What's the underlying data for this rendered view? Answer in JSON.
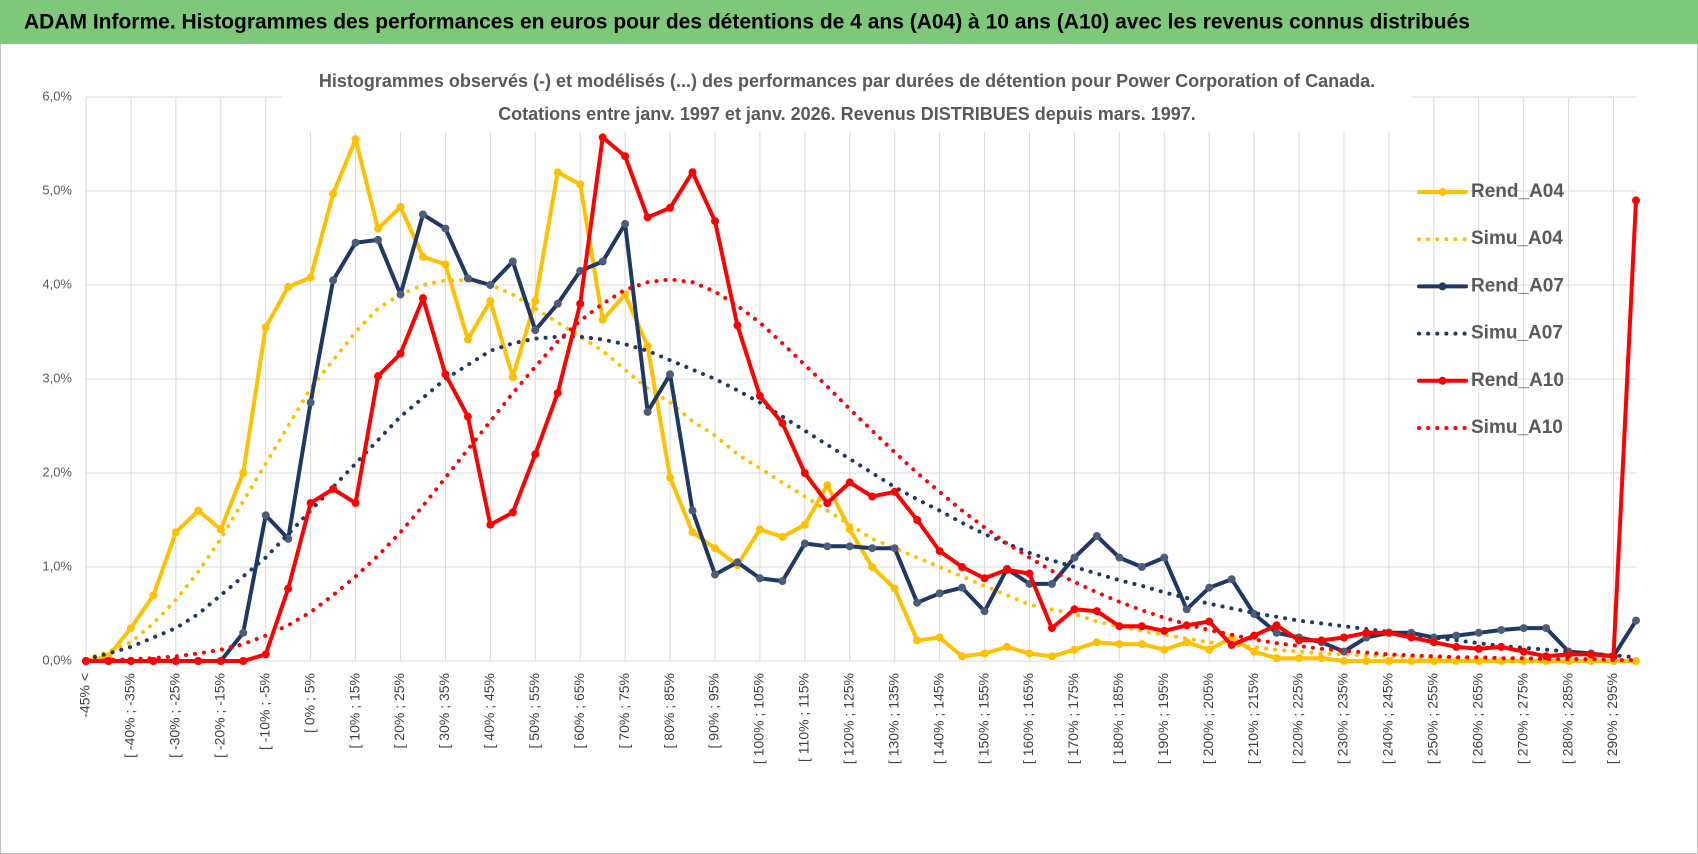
{
  "chart_data": {
    "type": "line",
    "title": "ADAM Informe. Histogrammes des performances en euros pour des détentions de 4 ans (A04) à 10 ans (A10) avec les revenus connus distribués",
    "subtitle": [
      "Histogrammes observés (-) et modélisés (...)  des performances par durées de détention pour Power Corporation of Canada.",
      "Cotations entre janv. 1997 et janv. 2026. Revenus DISTRIBUES depuis mars. 1997."
    ],
    "categories": [
      "-45% <",
      null,
      "[ -40% ; -35%",
      null,
      "[ -30% ; -25%",
      null,
      "[ -20% ; -15%",
      null,
      "[ -10% ; -5%",
      null,
      "[ 0% ; 5%",
      null,
      "[ 10% ; 15%",
      null,
      "[ 20% ; 25%",
      null,
      "[ 30% ; 35%",
      null,
      "[ 40% ; 45%",
      null,
      "[ 50% ; 55%",
      null,
      "[ 60% ; 65%",
      null,
      "[ 70% ; 75%",
      null,
      "[ 80% ; 85%",
      null,
      "[ 90% ; 95%",
      null,
      "[ 100% ; 105%",
      null,
      "[ 110% ; 115%",
      null,
      "[ 120% ; 125%",
      null,
      "[ 130% ; 135%",
      null,
      "[ 140% ; 145%",
      null,
      "[ 150% ; 155%",
      null,
      "[ 160% ; 165%",
      null,
      "[ 170% ; 175%",
      null,
      "[ 180% ; 185%",
      null,
      "[ 190% ; 195%",
      null,
      "[ 200% ; 205%",
      null,
      "[ 210% ; 215%",
      null,
      "[ 220% ; 225%",
      null,
      "[ 230% ; 235%",
      null,
      "[ 240% ; 245%",
      null,
      "[ 250% ; 255%",
      null,
      "[ 260% ; 265%",
      null,
      "[ 270% ; 275%",
      null,
      "[ 280% ; 285%",
      null,
      "[ 290% ; 295%",
      null
    ],
    "ylim": [
      0,
      6
    ],
    "yticks": [
      {
        "value": 0,
        "label": "0,0%"
      },
      {
        "value": 1,
        "label": "1,0%"
      },
      {
        "value": 2,
        "label": "2,0%"
      },
      {
        "value": 3,
        "label": "3,0%"
      },
      {
        "value": 4,
        "label": "4,0%"
      },
      {
        "value": 5,
        "label": "5,0%"
      },
      {
        "value": 6,
        "label": "6,0%"
      }
    ],
    "grid": true,
    "legend": "right",
    "series": [
      {
        "name": "Rend_A04",
        "color": "#ffc000",
        "style": "solid",
        "markers": true,
        "values": [
          0,
          0.05,
          0.35,
          0.7,
          1.37,
          1.6,
          1.4,
          2.0,
          3.55,
          3.98,
          4.08,
          4.97,
          5.55,
          4.6,
          4.83,
          4.3,
          4.22,
          3.42,
          3.83,
          3.02,
          3.83,
          5.2,
          5.07,
          3.63,
          3.9,
          3.35,
          1.95,
          1.37,
          1.2,
          1.02,
          1.4,
          1.32,
          1.45,
          1.87,
          1.4,
          1.0,
          0.77,
          0.22,
          0.25,
          0.05,
          0.08,
          0.15,
          0.08,
          0.05,
          0.12,
          0.2,
          0.18,
          0.18,
          0.12,
          0.2,
          0.12,
          0.25,
          0.1,
          0.03,
          0.03,
          0.03,
          0,
          0,
          0,
          0,
          0,
          0,
          0,
          0,
          0,
          0,
          0,
          0,
          0,
          0
        ]
      },
      {
        "name": "Simu_A04",
        "color": "#ffc000",
        "style": "dotted",
        "markers": false,
        "values": [
          0.02,
          0.1,
          0.2,
          0.4,
          0.65,
          0.95,
          1.3,
          1.7,
          2.1,
          2.5,
          2.9,
          3.2,
          3.5,
          3.75,
          3.9,
          4.0,
          4.05,
          4.05,
          4.0,
          3.9,
          3.75,
          3.6,
          3.45,
          3.3,
          3.1,
          2.9,
          2.75,
          2.55,
          2.4,
          2.2,
          2.05,
          1.9,
          1.75,
          1.6,
          1.45,
          1.3,
          1.2,
          1.1,
          1.0,
          0.9,
          0.8,
          0.7,
          0.6,
          0.55,
          0.5,
          0.42,
          0.37,
          0.32,
          0.28,
          0.24,
          0.2,
          0.17,
          0.15,
          0.12,
          0.1,
          0.08,
          0.07,
          0.06,
          0.05,
          0.04,
          0.03,
          0.03,
          0.02,
          0.02,
          0.01,
          0.01,
          0.01,
          0.01,
          0.01,
          0
        ]
      },
      {
        "name": "Rend_A07",
        "color": "#1f3864",
        "style": "solid",
        "markers": true,
        "values": [
          0,
          0,
          0,
          0,
          0,
          0,
          0,
          0.3,
          1.55,
          1.3,
          2.75,
          4.05,
          4.45,
          4.48,
          3.9,
          4.75,
          4.6,
          4.07,
          4.0,
          4.25,
          3.52,
          3.8,
          4.15,
          4.25,
          4.65,
          2.65,
          3.05,
          1.6,
          0.92,
          1.05,
          0.88,
          0.85,
          1.25,
          1.22,
          1.22,
          1.2,
          1.2,
          0.62,
          0.72,
          0.78,
          0.53,
          0.98,
          0.82,
          0.82,
          1.1,
          1.33,
          1.1,
          1.0,
          1.1,
          0.55,
          0.78,
          0.87,
          0.5,
          0.3,
          0.25,
          0.2,
          0.1,
          0.25,
          0.3,
          0.3,
          0.25,
          0.27,
          0.3,
          0.33,
          0.35,
          0.35,
          0.1,
          0.08,
          0.05,
          0.43
        ]
      },
      {
        "name": "Simu_A07",
        "color": "#1f3864",
        "style": "dotted",
        "markers": false,
        "values": [
          0.02,
          0.08,
          0.15,
          0.25,
          0.35,
          0.5,
          0.7,
          0.9,
          1.1,
          1.35,
          1.6,
          1.85,
          2.1,
          2.35,
          2.6,
          2.8,
          3.0,
          3.15,
          3.3,
          3.38,
          3.43,
          3.45,
          3.45,
          3.42,
          3.37,
          3.3,
          3.2,
          3.1,
          3.0,
          2.88,
          2.75,
          2.6,
          2.45,
          2.3,
          2.15,
          2.0,
          1.85,
          1.72,
          1.6,
          1.47,
          1.35,
          1.25,
          1.15,
          1.07,
          1.0,
          0.93,
          0.86,
          0.8,
          0.73,
          0.67,
          0.61,
          0.56,
          0.51,
          0.47,
          0.43,
          0.4,
          0.37,
          0.34,
          0.31,
          0.28,
          0.25,
          0.22,
          0.19,
          0.16,
          0.14,
          0.12,
          0.1,
          0.08,
          0.06,
          0.04
        ]
      },
      {
        "name": "Rend_A10",
        "color": "#ff0000",
        "style": "solid",
        "markers": true,
        "values": [
          0,
          0,
          0,
          0,
          0,
          0,
          0,
          0,
          0.07,
          0.77,
          1.68,
          1.83,
          1.68,
          3.03,
          3.27,
          3.86,
          3.05,
          2.6,
          1.45,
          1.58,
          2.2,
          2.85,
          3.8,
          5.57,
          5.37,
          4.72,
          4.82,
          5.2,
          4.68,
          3.57,
          2.82,
          2.53,
          2.0,
          1.68,
          1.9,
          1.75,
          1.8,
          1.5,
          1.17,
          1.0,
          0.88,
          0.97,
          0.93,
          0.35,
          0.55,
          0.53,
          0.37,
          0.37,
          0.32,
          0.38,
          0.42,
          0.17,
          0.27,
          0.38,
          0.22,
          0.22,
          0.25,
          0.3,
          0.3,
          0.25,
          0.2,
          0.15,
          0.13,
          0.15,
          0.1,
          0.05,
          0.07,
          0.07,
          0.05,
          4.9
        ]
      },
      {
        "name": "Simu_A10",
        "color": "#ff0000",
        "style": "dotted",
        "markers": false,
        "values": [
          0,
          0.01,
          0.02,
          0.03,
          0.05,
          0.08,
          0.12,
          0.18,
          0.27,
          0.38,
          0.52,
          0.7,
          0.9,
          1.12,
          1.37,
          1.65,
          1.95,
          2.25,
          2.55,
          2.85,
          3.13,
          3.4,
          3.62,
          3.8,
          3.95,
          4.03,
          4.06,
          4.03,
          3.93,
          3.78,
          3.6,
          3.38,
          3.15,
          2.92,
          2.68,
          2.45,
          2.22,
          2.0,
          1.8,
          1.6,
          1.42,
          1.25,
          1.1,
          0.96,
          0.84,
          0.73,
          0.63,
          0.54,
          0.46,
          0.39,
          0.33,
          0.28,
          0.23,
          0.19,
          0.16,
          0.13,
          0.11,
          0.09,
          0.07,
          0.06,
          0.05,
          0.04,
          0.04,
          0.03,
          0.03,
          0.02,
          0.02,
          0.02,
          0.01,
          0.01
        ]
      }
    ]
  }
}
